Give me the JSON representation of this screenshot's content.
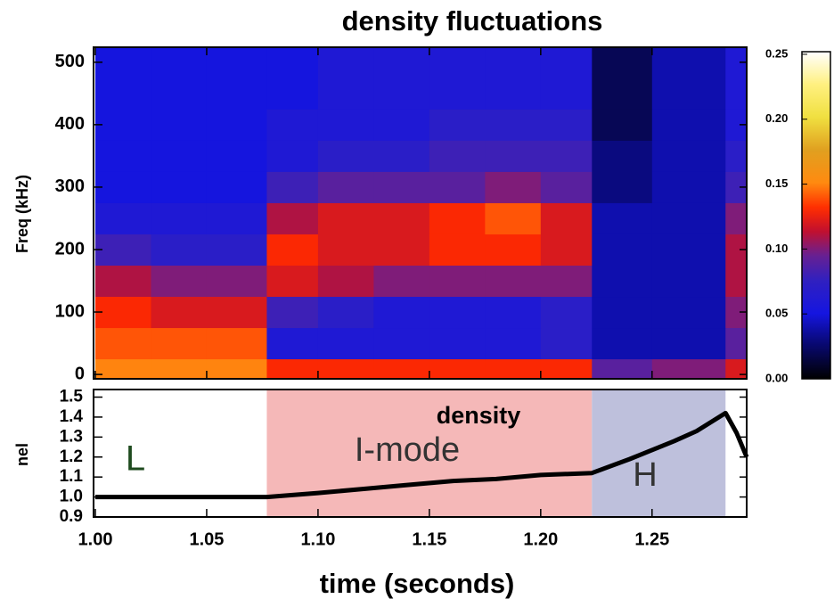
{
  "chart_data": [
    {
      "type": "heatmap",
      "title": "density fluctuations",
      "y_label": "Freq (kHz)",
      "xlim": [
        1.0,
        1.2925
      ],
      "ylim": [
        -7,
        524
      ],
      "yticks": [
        0,
        100,
        200,
        300,
        400,
        500
      ],
      "x_edges": [
        1.0,
        1.025,
        1.05,
        1.077,
        1.1,
        1.125,
        1.15,
        1.175,
        1.2,
        1.223,
        1.25,
        1.283,
        1.2925
      ],
      "y_edges": [
        -7,
        25,
        75,
        125,
        175,
        225,
        275,
        325,
        375,
        425,
        524
      ],
      "z": [
        [
          0.15,
          0.15,
          0.15,
          0.13,
          0.13,
          0.13,
          0.13,
          0.13,
          0.13,
          0.09,
          0.1,
          0.12
        ],
        [
          0.14,
          0.14,
          0.14,
          0.06,
          0.06,
          0.06,
          0.06,
          0.06,
          0.07,
          0.04,
          0.04,
          0.09
        ],
        [
          0.13,
          0.12,
          0.12,
          0.08,
          0.07,
          0.06,
          0.06,
          0.06,
          0.07,
          0.04,
          0.04,
          0.1
        ],
        [
          0.11,
          0.1,
          0.1,
          0.12,
          0.11,
          0.1,
          0.1,
          0.1,
          0.1,
          0.04,
          0.04,
          0.11
        ],
        [
          0.08,
          0.07,
          0.07,
          0.13,
          0.12,
          0.12,
          0.13,
          0.13,
          0.12,
          0.04,
          0.04,
          0.11
        ],
        [
          0.06,
          0.06,
          0.06,
          0.11,
          0.12,
          0.12,
          0.13,
          0.14,
          0.12,
          0.04,
          0.04,
          0.1
        ],
        [
          0.05,
          0.05,
          0.05,
          0.08,
          0.09,
          0.09,
          0.09,
          0.1,
          0.09,
          0.03,
          0.04,
          0.08
        ],
        [
          0.05,
          0.05,
          0.05,
          0.06,
          0.07,
          0.07,
          0.08,
          0.08,
          0.08,
          0.03,
          0.04,
          0.07
        ],
        [
          0.05,
          0.05,
          0.05,
          0.06,
          0.06,
          0.06,
          0.07,
          0.07,
          0.07,
          0.02,
          0.04,
          0.06
        ],
        [
          0.05,
          0.05,
          0.05,
          0.05,
          0.06,
          0.06,
          0.06,
          0.06,
          0.06,
          0.02,
          0.04,
          0.06
        ]
      ],
      "zlim": [
        0,
        0.252
      ],
      "zticks": [
        {
          "value": 0,
          "label": "0.00"
        },
        {
          "value": 0.05,
          "label": "0.05"
        },
        {
          "value": 0.1,
          "label": "0.10"
        },
        {
          "value": 0.15,
          "label": "0.15"
        },
        {
          "value": 0.2,
          "label": "0.20"
        },
        {
          "value": 0.25,
          "label": "0.25"
        }
      ]
    },
    {
      "type": "line",
      "x_label": "time (seconds)",
      "y_label": "nel",
      "annotation": "density",
      "xlim": [
        1.0,
        1.2925
      ],
      "ylim": [
        0.9,
        1.538
      ],
      "xticks": [
        {
          "value": 1.0,
          "label": "1.00"
        },
        {
          "value": 1.05,
          "label": "1.05"
        },
        {
          "value": 1.1,
          "label": "1.10"
        },
        {
          "value": 1.15,
          "label": "1.15"
        },
        {
          "value": 1.2,
          "label": "1.20"
        },
        {
          "value": 1.25,
          "label": "1.25"
        }
      ],
      "yticks": [
        0.9,
        {
          "value": 1.0,
          "label": "1.0"
        },
        1.1,
        1.2,
        1.3,
        1.4,
        1.5
      ],
      "regions": [
        {
          "label": "L",
          "start": 1.0,
          "end": 1.077,
          "color": "#ffffff",
          "text_color": "#1e4a1e"
        },
        {
          "label": "I-mode",
          "start": 1.077,
          "end": 1.223,
          "color": "#f5b8b8",
          "text_color": "#333333"
        },
        {
          "label": "H",
          "start": 1.223,
          "end": 1.283,
          "color": "#bec0dc",
          "text_color": "#333333"
        }
      ],
      "series": [
        {
          "color": "#000000",
          "x": [
            1.0,
            1.02,
            1.04,
            1.06,
            1.077,
            1.1,
            1.12,
            1.14,
            1.16,
            1.18,
            1.2,
            1.223,
            1.24,
            1.26,
            1.27,
            1.283,
            1.288,
            1.2925
          ],
          "values": [
            1.0,
            1.0,
            1.0,
            1.0,
            1.0,
            1.02,
            1.04,
            1.06,
            1.08,
            1.09,
            1.11,
            1.12,
            1.19,
            1.28,
            1.33,
            1.42,
            1.32,
            1.2
          ]
        }
      ]
    }
  ]
}
